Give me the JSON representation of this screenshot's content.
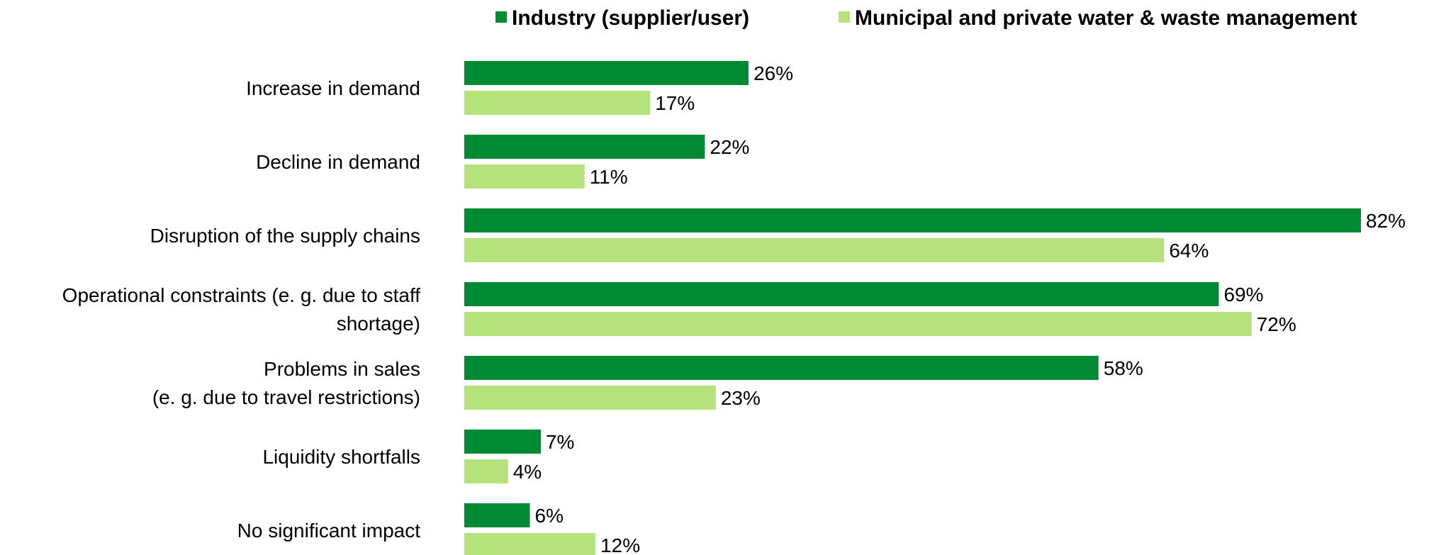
{
  "chart_data": {
    "type": "bar",
    "orientation": "horizontal",
    "categories": [
      [
        "Increase in demand"
      ],
      [
        "Decline in demand"
      ],
      [
        "Disruption of the supply chains"
      ],
      [
        "Operational constraints (e. g. due to staff",
        "shortage)"
      ],
      [
        "Problems in sales",
        "(e. g. due to travel restrictions)"
      ],
      [
        "Liquidity shortfalls"
      ],
      [
        "No significant impact"
      ]
    ],
    "series": [
      {
        "name": "Industry (supplier/user)",
        "color": "#008a33",
        "values": [
          26,
          22,
          82,
          69,
          58,
          7,
          6
        ],
        "labels": [
          "26%",
          "22%",
          "82%",
          "69%",
          "58%",
          "7%",
          "6%"
        ]
      },
      {
        "name": "Municipal and private water & waste management",
        "color": "#b5e27a",
        "values": [
          17,
          11,
          64,
          72,
          23,
          4,
          12
        ],
        "labels": [
          "17%",
          "11%",
          "64%",
          "72%",
          "23%",
          "4%",
          "12%"
        ]
      }
    ],
    "xlim": [
      0,
      100
    ],
    "legend_position": "top",
    "grid": false,
    "title": "",
    "xlabel": "",
    "ylabel": ""
  }
}
